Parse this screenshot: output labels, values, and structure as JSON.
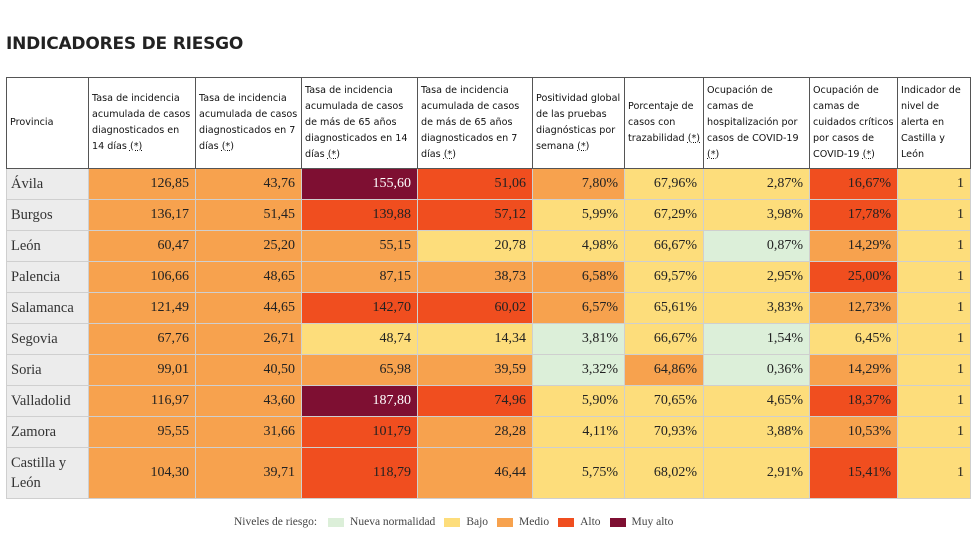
{
  "title": "INDICADORES DE RIESGO",
  "colors": {
    "nueva": "#dcefd9",
    "bajo": "#fddd7b",
    "medio": "#f7a24e",
    "alto": "#f04e1f",
    "muy_alto": "#7e0f32"
  },
  "headers": [
    {
      "text": "Provincia",
      "ast": ""
    },
    {
      "text": "Tasa de incidencia acumulada de casos diagnosticados en 14 días ",
      "ast": "(*)"
    },
    {
      "text": "Tasa de incidencia acumulada de casos diagnosticados en 7 días ",
      "ast": "(*)"
    },
    {
      "text": "Tasa de incidencia acumulada de casos de más de 65 años diagnosticados en 14 días ",
      "ast": "(*)"
    },
    {
      "text": "Tasa de incidencia acumulada de casos de más de 65 años diagnosticados en 7 días ",
      "ast": "(*)"
    },
    {
      "text": "Positividad global de las pruebas diagnósticas por semana ",
      "ast": "(*)"
    },
    {
      "text": "Porcentaje de casos con trazabilidad ",
      "ast": "(*)"
    },
    {
      "text": "Ocupación de camas de hospitalización por casos de COVID-19 ",
      "ast": "(*)"
    },
    {
      "text": "Ocupación de camas de cuidados críticos por casos de COVID-19 ",
      "ast": "(*)"
    },
    {
      "text": "Indicador de nivel de alerta en Castilla y León",
      "ast": ""
    }
  ],
  "rows": [
    {
      "provincia": "Ávila",
      "values": [
        "126,85",
        "43,76",
        "155,60",
        "51,06",
        "7,80%",
        "67,96%",
        "2,87%",
        "16,67%",
        "1"
      ],
      "levels": [
        "medio",
        "medio",
        "muy_alto",
        "alto",
        "medio",
        "bajo",
        "bajo",
        "alto",
        "bajo"
      ]
    },
    {
      "provincia": "Burgos",
      "values": [
        "136,17",
        "51,45",
        "139,88",
        "57,12",
        "5,99%",
        "67,29%",
        "3,98%",
        "17,78%",
        "1"
      ],
      "levels": [
        "medio",
        "medio",
        "alto",
        "alto",
        "bajo",
        "bajo",
        "bajo",
        "alto",
        "bajo"
      ]
    },
    {
      "provincia": "León",
      "values": [
        "60,47",
        "25,20",
        "55,15",
        "20,78",
        "4,98%",
        "66,67%",
        "0,87%",
        "14,29%",
        "1"
      ],
      "levels": [
        "medio",
        "medio",
        "medio",
        "bajo",
        "bajo",
        "bajo",
        "nueva",
        "medio",
        "bajo"
      ]
    },
    {
      "provincia": "Palencia",
      "values": [
        "106,66",
        "48,65",
        "87,15",
        "38,73",
        "6,58%",
        "69,57%",
        "2,95%",
        "25,00%",
        "1"
      ],
      "levels": [
        "medio",
        "medio",
        "medio",
        "medio",
        "medio",
        "bajo",
        "bajo",
        "alto",
        "bajo"
      ]
    },
    {
      "provincia": "Salamanca",
      "values": [
        "121,49",
        "44,65",
        "142,70",
        "60,02",
        "6,57%",
        "65,61%",
        "3,83%",
        "12,73%",
        "1"
      ],
      "levels": [
        "medio",
        "medio",
        "alto",
        "alto",
        "medio",
        "bajo",
        "bajo",
        "medio",
        "bajo"
      ]
    },
    {
      "provincia": "Segovia",
      "values": [
        "67,76",
        "26,71",
        "48,74",
        "14,34",
        "3,81%",
        "66,67%",
        "1,54%",
        "6,45%",
        "1"
      ],
      "levels": [
        "medio",
        "medio",
        "bajo",
        "bajo",
        "nueva",
        "bajo",
        "nueva",
        "bajo",
        "bajo"
      ]
    },
    {
      "provincia": "Soria",
      "values": [
        "99,01",
        "40,50",
        "65,98",
        "39,59",
        "3,32%",
        "64,86%",
        "0,36%",
        "14,29%",
        "1"
      ],
      "levels": [
        "medio",
        "medio",
        "medio",
        "medio",
        "nueva",
        "medio",
        "nueva",
        "medio",
        "bajo"
      ]
    },
    {
      "provincia": "Valladolid",
      "values": [
        "116,97",
        "43,60",
        "187,80",
        "74,96",
        "5,90%",
        "70,65%",
        "4,65%",
        "18,37%",
        "1"
      ],
      "levels": [
        "medio",
        "medio",
        "muy_alto",
        "alto",
        "bajo",
        "bajo",
        "bajo",
        "alto",
        "bajo"
      ]
    },
    {
      "provincia": "Zamora",
      "values": [
        "95,55",
        "31,66",
        "101,79",
        "28,28",
        "4,11%",
        "70,93%",
        "3,88%",
        "10,53%",
        "1"
      ],
      "levels": [
        "medio",
        "medio",
        "alto",
        "medio",
        "bajo",
        "bajo",
        "bajo",
        "medio",
        "bajo"
      ]
    },
    {
      "provincia": "Castilla y León",
      "values": [
        "104,30",
        "39,71",
        "118,79",
        "46,44",
        "5,75%",
        "68,02%",
        "2,91%",
        "15,41%",
        "1"
      ],
      "levels": [
        "medio",
        "medio",
        "alto",
        "medio",
        "bajo",
        "bajo",
        "bajo",
        "alto",
        "bajo"
      ],
      "tall": true
    }
  ],
  "legend": {
    "label": "Niveles de riesgo:",
    "items": [
      {
        "label": "Nueva normalidad",
        "key": "nueva"
      },
      {
        "label": "Bajo",
        "key": "bajo"
      },
      {
        "label": "Medio",
        "key": "medio"
      },
      {
        "label": "Alto",
        "key": "alto"
      },
      {
        "label": "Muy alto",
        "key": "muy_alto"
      }
    ]
  }
}
